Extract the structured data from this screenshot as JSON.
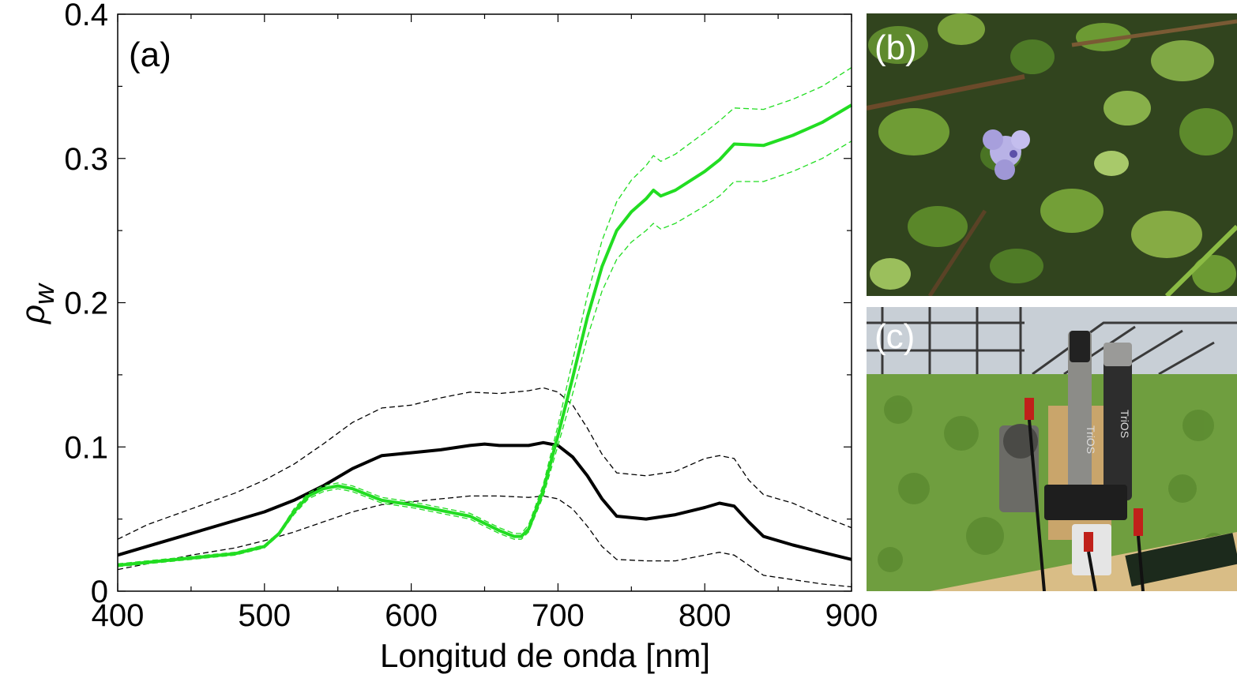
{
  "chart_data": {
    "type": "line",
    "panel_label": "(a)",
    "xlabel": "Longitud de onda [nm]",
    "ylabel": "ρ",
    "ylabel_subscript": "w",
    "xlim": [
      400,
      900
    ],
    "ylim": [
      0,
      0.4
    ],
    "xticks": [
      400,
      500,
      600,
      700,
      800,
      900
    ],
    "yticks": [
      0,
      0.1,
      0.2,
      0.3,
      0.4
    ],
    "xtick_labels": [
      "400",
      "500",
      "600",
      "700",
      "800",
      "900"
    ],
    "ytick_labels": [
      "0",
      "0.1",
      "0.2",
      "0.3",
      "0.4"
    ],
    "grid": false,
    "legend": "none",
    "series": [
      {
        "style": "solid-thick",
        "color": "#000000",
        "x": [
          400,
          420,
          450,
          480,
          500,
          520,
          540,
          560,
          580,
          600,
          620,
          640,
          650,
          660,
          680,
          690,
          700,
          710,
          720,
          730,
          740,
          760,
          780,
          800,
          810,
          820,
          830,
          840,
          860,
          880,
          900
        ],
        "y": [
          0.025,
          0.031,
          0.04,
          0.049,
          0.055,
          0.063,
          0.073,
          0.085,
          0.094,
          0.096,
          0.098,
          0.101,
          0.102,
          0.101,
          0.101,
          0.103,
          0.101,
          0.093,
          0.08,
          0.064,
          0.052,
          0.05,
          0.053,
          0.058,
          0.061,
          0.059,
          0.048,
          0.038,
          0.032,
          0.027,
          0.022
        ]
      },
      {
        "style": "dashed",
        "color": "#000000",
        "x": [
          400,
          420,
          450,
          480,
          500,
          520,
          540,
          560,
          580,
          600,
          620,
          640,
          660,
          680,
          690,
          700,
          710,
          720,
          730,
          740,
          760,
          780,
          800,
          810,
          820,
          830,
          840,
          860,
          880,
          900
        ],
        "y": [
          0.036,
          0.046,
          0.057,
          0.068,
          0.077,
          0.088,
          0.102,
          0.117,
          0.127,
          0.129,
          0.134,
          0.138,
          0.137,
          0.139,
          0.141,
          0.138,
          0.129,
          0.113,
          0.095,
          0.082,
          0.08,
          0.083,
          0.092,
          0.094,
          0.092,
          0.077,
          0.067,
          0.061,
          0.052,
          0.044
        ]
      },
      {
        "style": "dashed",
        "color": "#000000",
        "x": [
          400,
          420,
          450,
          480,
          500,
          520,
          540,
          560,
          580,
          600,
          620,
          640,
          660,
          680,
          690,
          700,
          710,
          720,
          730,
          740,
          760,
          780,
          800,
          810,
          820,
          830,
          840,
          860,
          880,
          900
        ],
        "y": [
          0.015,
          0.019,
          0.025,
          0.03,
          0.035,
          0.041,
          0.048,
          0.055,
          0.06,
          0.062,
          0.064,
          0.066,
          0.066,
          0.065,
          0.066,
          0.064,
          0.057,
          0.045,
          0.031,
          0.022,
          0.021,
          0.021,
          0.025,
          0.027,
          0.025,
          0.018,
          0.011,
          0.008,
          0.005,
          0.003
        ]
      },
      {
        "style": "solid-thick",
        "color": "#22dd22",
        "x": [
          400,
          420,
          450,
          480,
          500,
          510,
          520,
          530,
          540,
          550,
          560,
          570,
          580,
          600,
          620,
          640,
          650,
          660,
          670,
          675,
          680,
          690,
          700,
          710,
          720,
          730,
          740,
          750,
          760,
          765,
          770,
          780,
          800,
          810,
          820,
          840,
          860,
          880,
          900
        ],
        "y": [
          0.018,
          0.02,
          0.023,
          0.026,
          0.031,
          0.04,
          0.055,
          0.066,
          0.071,
          0.073,
          0.071,
          0.067,
          0.063,
          0.06,
          0.056,
          0.052,
          0.047,
          0.042,
          0.038,
          0.038,
          0.043,
          0.07,
          0.108,
          0.148,
          0.19,
          0.225,
          0.25,
          0.263,
          0.272,
          0.278,
          0.274,
          0.278,
          0.291,
          0.299,
          0.31,
          0.309,
          0.316,
          0.325,
          0.337
        ]
      },
      {
        "style": "dashed",
        "color": "#22dd22",
        "x": [
          400,
          420,
          450,
          480,
          500,
          510,
          520,
          530,
          540,
          550,
          560,
          570,
          580,
          600,
          620,
          640,
          650,
          660,
          670,
          675,
          680,
          690,
          700,
          710,
          720,
          730,
          740,
          750,
          760,
          765,
          770,
          780,
          800,
          810,
          820,
          840,
          860,
          880,
          900
        ],
        "y": [
          0.019,
          0.021,
          0.024,
          0.027,
          0.032,
          0.041,
          0.057,
          0.068,
          0.073,
          0.075,
          0.073,
          0.069,
          0.065,
          0.062,
          0.058,
          0.054,
          0.049,
          0.044,
          0.04,
          0.04,
          0.046,
          0.074,
          0.115,
          0.16,
          0.205,
          0.243,
          0.27,
          0.285,
          0.295,
          0.302,
          0.298,
          0.303,
          0.318,
          0.326,
          0.335,
          0.334,
          0.341,
          0.35,
          0.363
        ]
      },
      {
        "style": "dashed",
        "color": "#22dd22",
        "x": [
          400,
          420,
          450,
          480,
          500,
          510,
          520,
          530,
          540,
          550,
          560,
          570,
          580,
          600,
          620,
          640,
          650,
          660,
          670,
          675,
          680,
          690,
          700,
          710,
          720,
          730,
          740,
          750,
          760,
          765,
          770,
          780,
          800,
          810,
          820,
          840,
          860,
          880,
          900
        ],
        "y": [
          0.017,
          0.019,
          0.022,
          0.025,
          0.03,
          0.039,
          0.053,
          0.064,
          0.069,
          0.071,
          0.069,
          0.065,
          0.061,
          0.058,
          0.054,
          0.05,
          0.045,
          0.04,
          0.036,
          0.036,
          0.041,
          0.066,
          0.101,
          0.137,
          0.176,
          0.208,
          0.23,
          0.242,
          0.25,
          0.255,
          0.251,
          0.255,
          0.267,
          0.274,
          0.284,
          0.284,
          0.291,
          0.3,
          0.312
        ]
      }
    ]
  },
  "photos": {
    "b": {
      "label": "(b)"
    },
    "c": {
      "label": "(c)",
      "sensor_text_1": "TriOS",
      "sensor_text_2": "TriOS"
    }
  }
}
